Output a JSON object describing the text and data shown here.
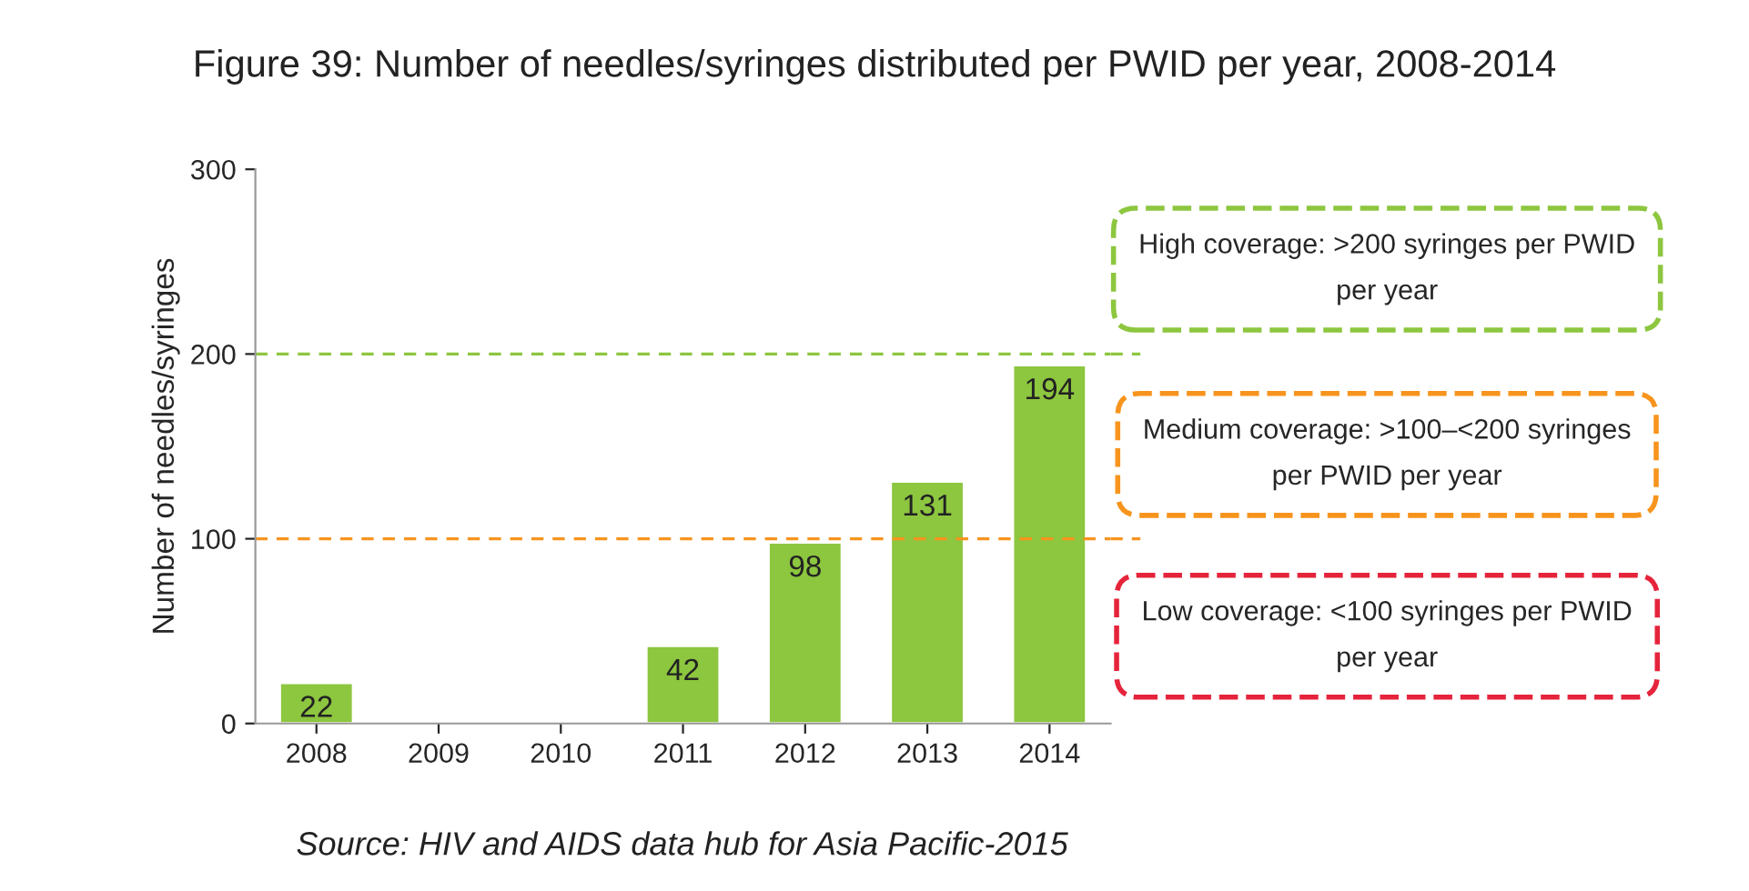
{
  "chart_data": {
    "type": "bar",
    "title": "Figure 39: Number of needles/syringes distributed per PWID per year, 2008-2014",
    "ylabel": "Number of needles/syringes",
    "categories": [
      "2008",
      "2009",
      "2010",
      "2011",
      "2012",
      "2013",
      "2014"
    ],
    "values": [
      22,
      null,
      null,
      42,
      98,
      131,
      194
    ],
    "color": "#8dc63f",
    "ylim": [
      0,
      300
    ],
    "yticks": [
      0,
      100,
      200,
      300
    ],
    "grid": false,
    "data_labels": true,
    "ref_lines": [
      {
        "axis": "y",
        "value": 200,
        "label": "High coverage: >200 syringes per PWID per year",
        "color": "#8dc63f",
        "line_style": "dashed"
      },
      {
        "axis": "y",
        "value": 100,
        "label": "Medium coverage: >100–<200 syringes per PWID per year",
        "color": "#f7941d",
        "line_style": "dashed"
      }
    ],
    "annotations": [
      "Low coverage: <100 syringes per PWID per year",
      "Source: HIV and AIDS data hub for Asia Pacific-2015"
    ]
  }
}
